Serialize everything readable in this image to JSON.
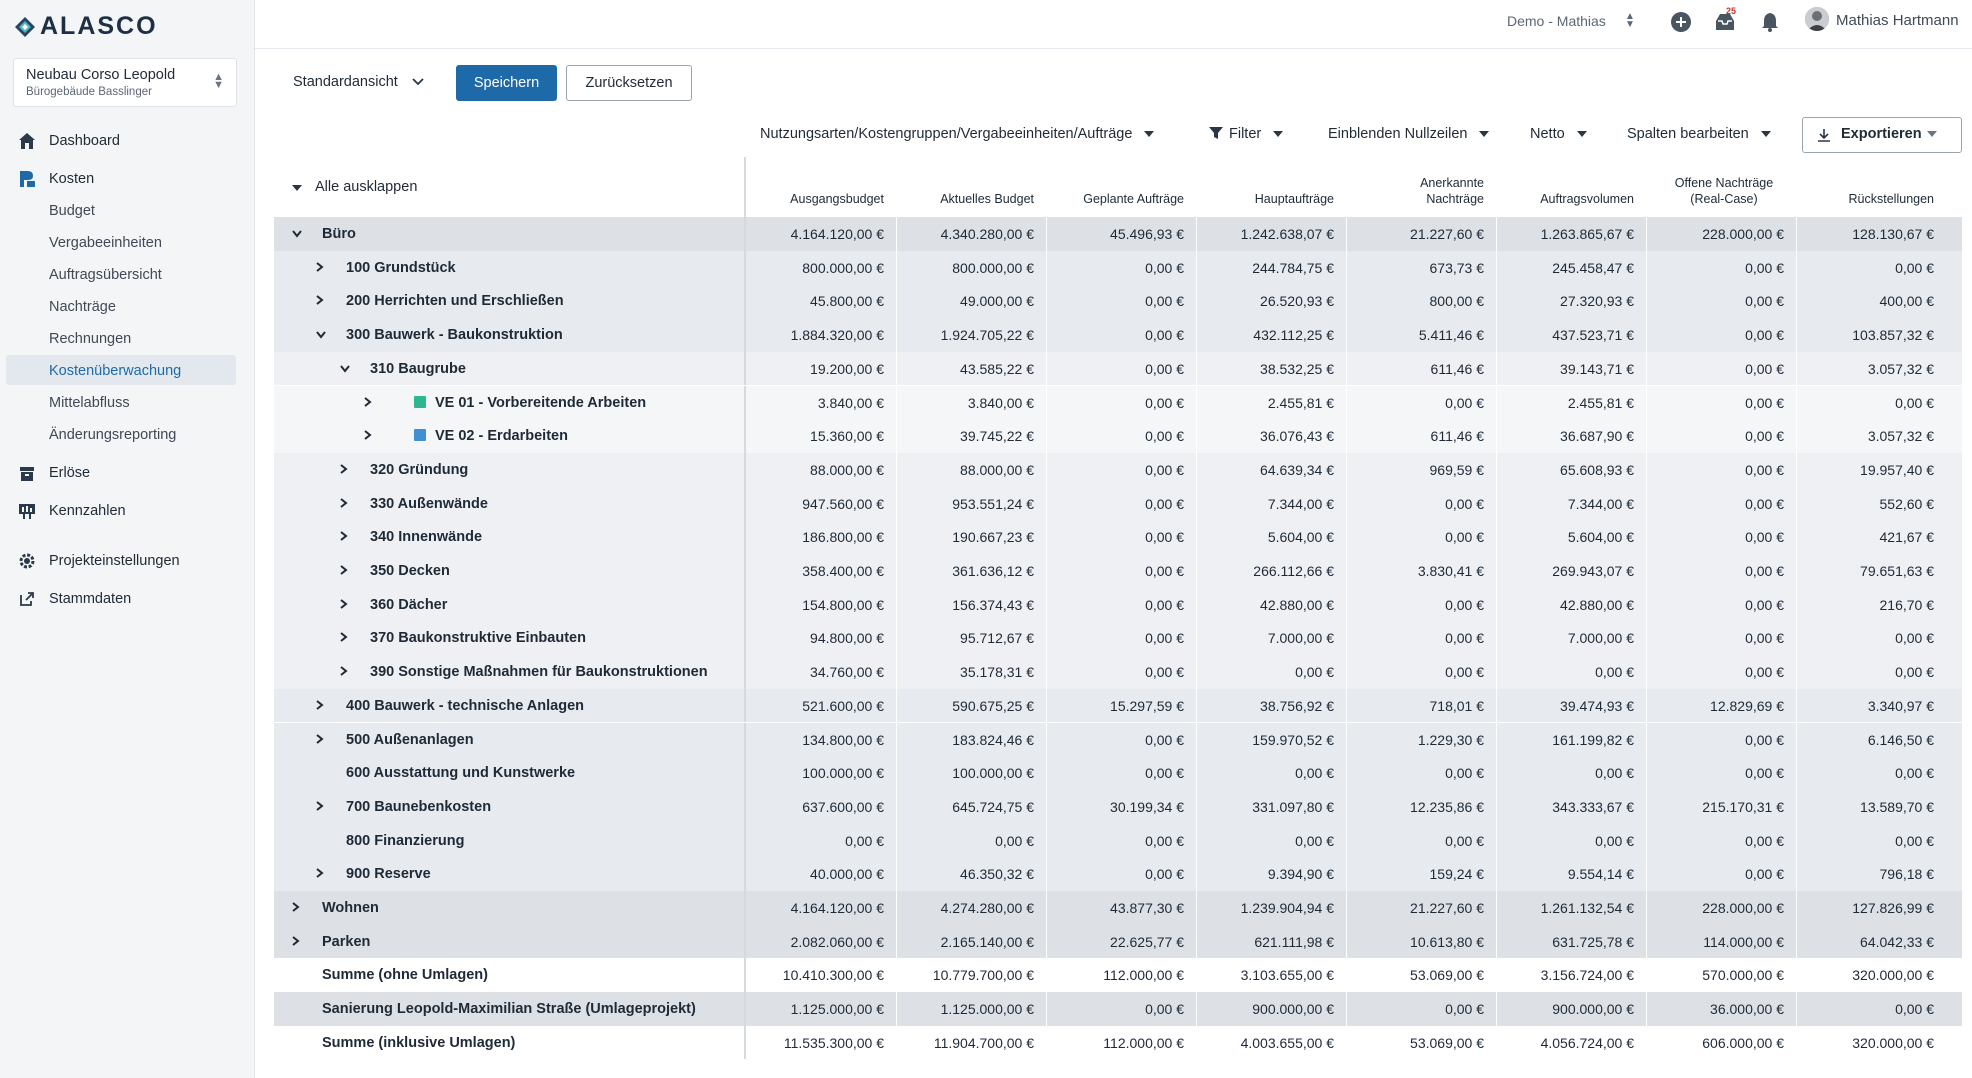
{
  "app": {
    "logo_text": "ALASCO",
    "project": {
      "name": "Neubau Corso Leopold",
      "subtitle": "Bürogebäude Basslinger"
    }
  },
  "nav": [
    {
      "label": "Dashboard",
      "icon": "home-icon"
    },
    {
      "label": "Kosten",
      "icon": "cost-icon"
    },
    {
      "label": "Erlöse",
      "icon": "revenue-icon"
    },
    {
      "label": "Kennzahlen",
      "icon": "kpi-icon"
    },
    {
      "label": "Projekteinstellungen",
      "icon": "gear-icon"
    },
    {
      "label": "Stammdaten",
      "icon": "external-link-icon"
    }
  ],
  "nav_sub": [
    "Budget",
    "Vergabeeinheiten",
    "Auftragsübersicht",
    "Nachträge",
    "Rechnungen",
    "Kostenüberwachung",
    "Mittelabfluss",
    "Änderungsreporting"
  ],
  "topbar": {
    "workspace": "Demo - Mathias",
    "notification_count": "25",
    "user": "Mathias Hartmann"
  },
  "toolbar": {
    "view": "Standardansicht",
    "save": "Speichern",
    "reset": "Zurücksetzen",
    "grouping": "Nutzungsarten/Kostengruppen/Vergabeeinheiten/Aufträge",
    "filter": "Filter",
    "zero_rows": "Einblenden Nullzeilen",
    "netto": "Netto",
    "columns": "Spalten bearbeiten",
    "export": "Exportieren"
  },
  "table": {
    "expand_all": "Alle ausklappen",
    "headers": [
      "Ausgangsbudget",
      "Aktuelles Budget",
      "Geplante Aufträge",
      "Hauptaufträge",
      "Anerkannte Nachträge",
      "Auftragsvolumen",
      "Offene Nachträge (Real-Case)",
      "Rückstellungen"
    ],
    "rows": [
      {
        "level": 0,
        "exp": "v",
        "name": "Büro",
        "bg": "#dde1e6",
        "values": [
          "4.164.120,00 €",
          "4.340.280,00 €",
          "45.496,93 €",
          "1.242.638,07 €",
          "21.227,60 €",
          "1.263.865,67 €",
          "228.000,00 €",
          "128.130,67 €"
        ]
      },
      {
        "level": 1,
        "exp": ">",
        "name": "100 Grundstück",
        "bg": "#e7eaee",
        "values": [
          "800.000,00 €",
          "800.000,00 €",
          "0,00 €",
          "244.784,75 €",
          "673,73 €",
          "245.458,47 €",
          "0,00 €",
          "0,00 €"
        ]
      },
      {
        "level": 1,
        "exp": ">",
        "name": "200 Herrichten und Erschließen",
        "bg": "#e7eaee",
        "values": [
          "45.800,00 €",
          "49.000,00 €",
          "0,00 €",
          "26.520,93 €",
          "800,00 €",
          "27.320,93 €",
          "0,00 €",
          "400,00 €"
        ]
      },
      {
        "level": 1,
        "exp": "v",
        "name": "300 Bauwerk - Baukonstruktion",
        "bg": "#e7eaee",
        "values": [
          "1.884.320,00 €",
          "1.924.705,22 €",
          "0,00 €",
          "432.112,25 €",
          "5.411,46 €",
          "437.523,71 €",
          "0,00 €",
          "103.857,32 €"
        ]
      },
      {
        "level": 2,
        "exp": "v",
        "name": "310 Baugrube",
        "bg": "#eef0f3",
        "values": [
          "19.200,00 €",
          "43.585,22 €",
          "0,00 €",
          "38.532,25 €",
          "611,46 €",
          "39.143,71 €",
          "0,00 €",
          "3.057,32 €"
        ]
      },
      {
        "level": 3,
        "exp": ">",
        "name": "VE 01 - Vorbereitende Arbeiten",
        "square": "#2fb58f",
        "bg": "#f5f6f8",
        "values": [
          "3.840,00 €",
          "3.840,00 €",
          "0,00 €",
          "2.455,81 €",
          "0,00 €",
          "2.455,81 €",
          "0,00 €",
          "0,00 €"
        ]
      },
      {
        "level": 3,
        "exp": ">",
        "name": "VE 02 - Erdarbeiten",
        "square": "#3f8fd2",
        "bg": "#f5f6f8",
        "values": [
          "15.360,00 €",
          "39.745,22 €",
          "0,00 €",
          "36.076,43 €",
          "611,46 €",
          "36.687,90 €",
          "0,00 €",
          "3.057,32 €"
        ]
      },
      {
        "level": 2,
        "exp": ">",
        "name": "320 Gründung",
        "bg": "#eef0f3",
        "values": [
          "88.000,00 €",
          "88.000,00 €",
          "0,00 €",
          "64.639,34 €",
          "969,59 €",
          "65.608,93 €",
          "0,00 €",
          "19.957,40 €"
        ]
      },
      {
        "level": 2,
        "exp": ">",
        "name": "330 Außenwände",
        "bg": "#eef0f3",
        "values": [
          "947.560,00 €",
          "953.551,24 €",
          "0,00 €",
          "7.344,00 €",
          "0,00 €",
          "7.344,00 €",
          "0,00 €",
          "552,60 €"
        ]
      },
      {
        "level": 2,
        "exp": ">",
        "name": "340 Innenwände",
        "bg": "#eef0f3",
        "values": [
          "186.800,00 €",
          "190.667,23 €",
          "0,00 €",
          "5.604,00 €",
          "0,00 €",
          "5.604,00 €",
          "0,00 €",
          "421,67 €"
        ]
      },
      {
        "level": 2,
        "exp": ">",
        "name": "350 Decken",
        "bg": "#eef0f3",
        "values": [
          "358.400,00 €",
          "361.636,12 €",
          "0,00 €",
          "266.112,66 €",
          "3.830,41 €",
          "269.943,07 €",
          "0,00 €",
          "79.651,63 €"
        ]
      },
      {
        "level": 2,
        "exp": ">",
        "name": "360 Dächer",
        "bg": "#eef0f3",
        "values": [
          "154.800,00 €",
          "156.374,43 €",
          "0,00 €",
          "42.880,00 €",
          "0,00 €",
          "42.880,00 €",
          "0,00 €",
          "216,70 €"
        ]
      },
      {
        "level": 2,
        "exp": ">",
        "name": "370 Baukonstruktive Einbauten",
        "bg": "#eef0f3",
        "values": [
          "94.800,00 €",
          "95.712,67 €",
          "0,00 €",
          "7.000,00 €",
          "0,00 €",
          "7.000,00 €",
          "0,00 €",
          "0,00 €"
        ]
      },
      {
        "level": 2,
        "exp": ">",
        "name": "390 Sonstige Maßnahmen für Baukonstruktionen",
        "bg": "#eef0f3",
        "values": [
          "34.760,00 €",
          "35.178,31 €",
          "0,00 €",
          "0,00 €",
          "0,00 €",
          "0,00 €",
          "0,00 €",
          "0,00 €"
        ]
      },
      {
        "level": 1,
        "exp": ">",
        "name": "400 Bauwerk - technische Anlagen",
        "bg": "#e7eaee",
        "values": [
          "521.600,00 €",
          "590.675,25 €",
          "15.297,59 €",
          "38.756,92 €",
          "718,01 €",
          "39.474,93 €",
          "12.829,69 €",
          "3.340,97 €"
        ]
      },
      {
        "level": 1,
        "exp": ">",
        "name": "500 Außenanlagen",
        "bg": "#e7eaee",
        "values": [
          "134.800,00 €",
          "183.824,46 €",
          "0,00 €",
          "159.970,52 €",
          "1.229,30 €",
          "161.199,82 €",
          "0,00 €",
          "6.146,50 €"
        ]
      },
      {
        "level": 1,
        "exp": "",
        "name": "600 Ausstattung und Kunstwerke",
        "bg": "#e7eaee",
        "values": [
          "100.000,00 €",
          "100.000,00 €",
          "0,00 €",
          "0,00 €",
          "0,00 €",
          "0,00 €",
          "0,00 €",
          "0,00 €"
        ]
      },
      {
        "level": 1,
        "exp": ">",
        "name": "700 Baunebenkosten",
        "bg": "#e7eaee",
        "values": [
          "637.600,00 €",
          "645.724,75 €",
          "30.199,34 €",
          "331.097,80 €",
          "12.235,86 €",
          "343.333,67 €",
          "215.170,31 €",
          "13.589,70 €"
        ]
      },
      {
        "level": 1,
        "exp": "",
        "name": "800 Finanzierung",
        "bg": "#e7eaee",
        "values": [
          "0,00 €",
          "0,00 €",
          "0,00 €",
          "0,00 €",
          "0,00 €",
          "0,00 €",
          "0,00 €",
          "0,00 €"
        ]
      },
      {
        "level": 1,
        "exp": ">",
        "name": "900 Reserve",
        "bg": "#e7eaee",
        "values": [
          "40.000,00 €",
          "46.350,32 €",
          "0,00 €",
          "9.394,90 €",
          "159,24 €",
          "9.554,14 €",
          "0,00 €",
          "796,18 €"
        ]
      },
      {
        "level": 0,
        "exp": ">",
        "name": "Wohnen",
        "bg": "#dde1e6",
        "values": [
          "4.164.120,00 €",
          "4.274.280,00 €",
          "43.877,30 €",
          "1.239.904,94 €",
          "21.227,60 €",
          "1.261.132,54 €",
          "228.000,00 €",
          "127.826,99 €"
        ]
      },
      {
        "level": 0,
        "exp": ">",
        "name": "Parken",
        "bg": "#dde1e6",
        "values": [
          "2.082.060,00 €",
          "2.165.140,00 €",
          "22.625,77 €",
          "621.111,98 €",
          "10.613,80 €",
          "631.725,78 €",
          "114.000,00 €",
          "64.042,33 €"
        ]
      },
      {
        "level": 0,
        "exp": "",
        "name": "Summe (ohne Umlagen)",
        "bg": "#ffffff",
        "values": [
          "10.410.300,00 €",
          "10.779.700,00 €",
          "112.000,00 €",
          "3.103.655,00 €",
          "53.069,00 €",
          "3.156.724,00 €",
          "570.000,00 €",
          "320.000,00 €"
        ]
      },
      {
        "level": 0,
        "exp": "",
        "name": "Sanierung Leopold-Maximilian Straße (Umlageprojekt)",
        "bg": "#dde1e6",
        "values": [
          "1.125.000,00 €",
          "1.125.000,00 €",
          "0,00 €",
          "900.000,00 €",
          "0,00 €",
          "900.000,00 €",
          "36.000,00 €",
          "0,00 €"
        ]
      },
      {
        "level": 0,
        "exp": "",
        "name": "Summe (inklusive Umlagen)",
        "bg": "#ffffff",
        "values": [
          "11.535.300,00 €",
          "11.904.700,00 €",
          "112.000,00 €",
          "4.003.655,00 €",
          "53.069,00 €",
          "4.056.724,00 €",
          "606.000,00 €",
          "320.000,00 €"
        ]
      }
    ]
  }
}
